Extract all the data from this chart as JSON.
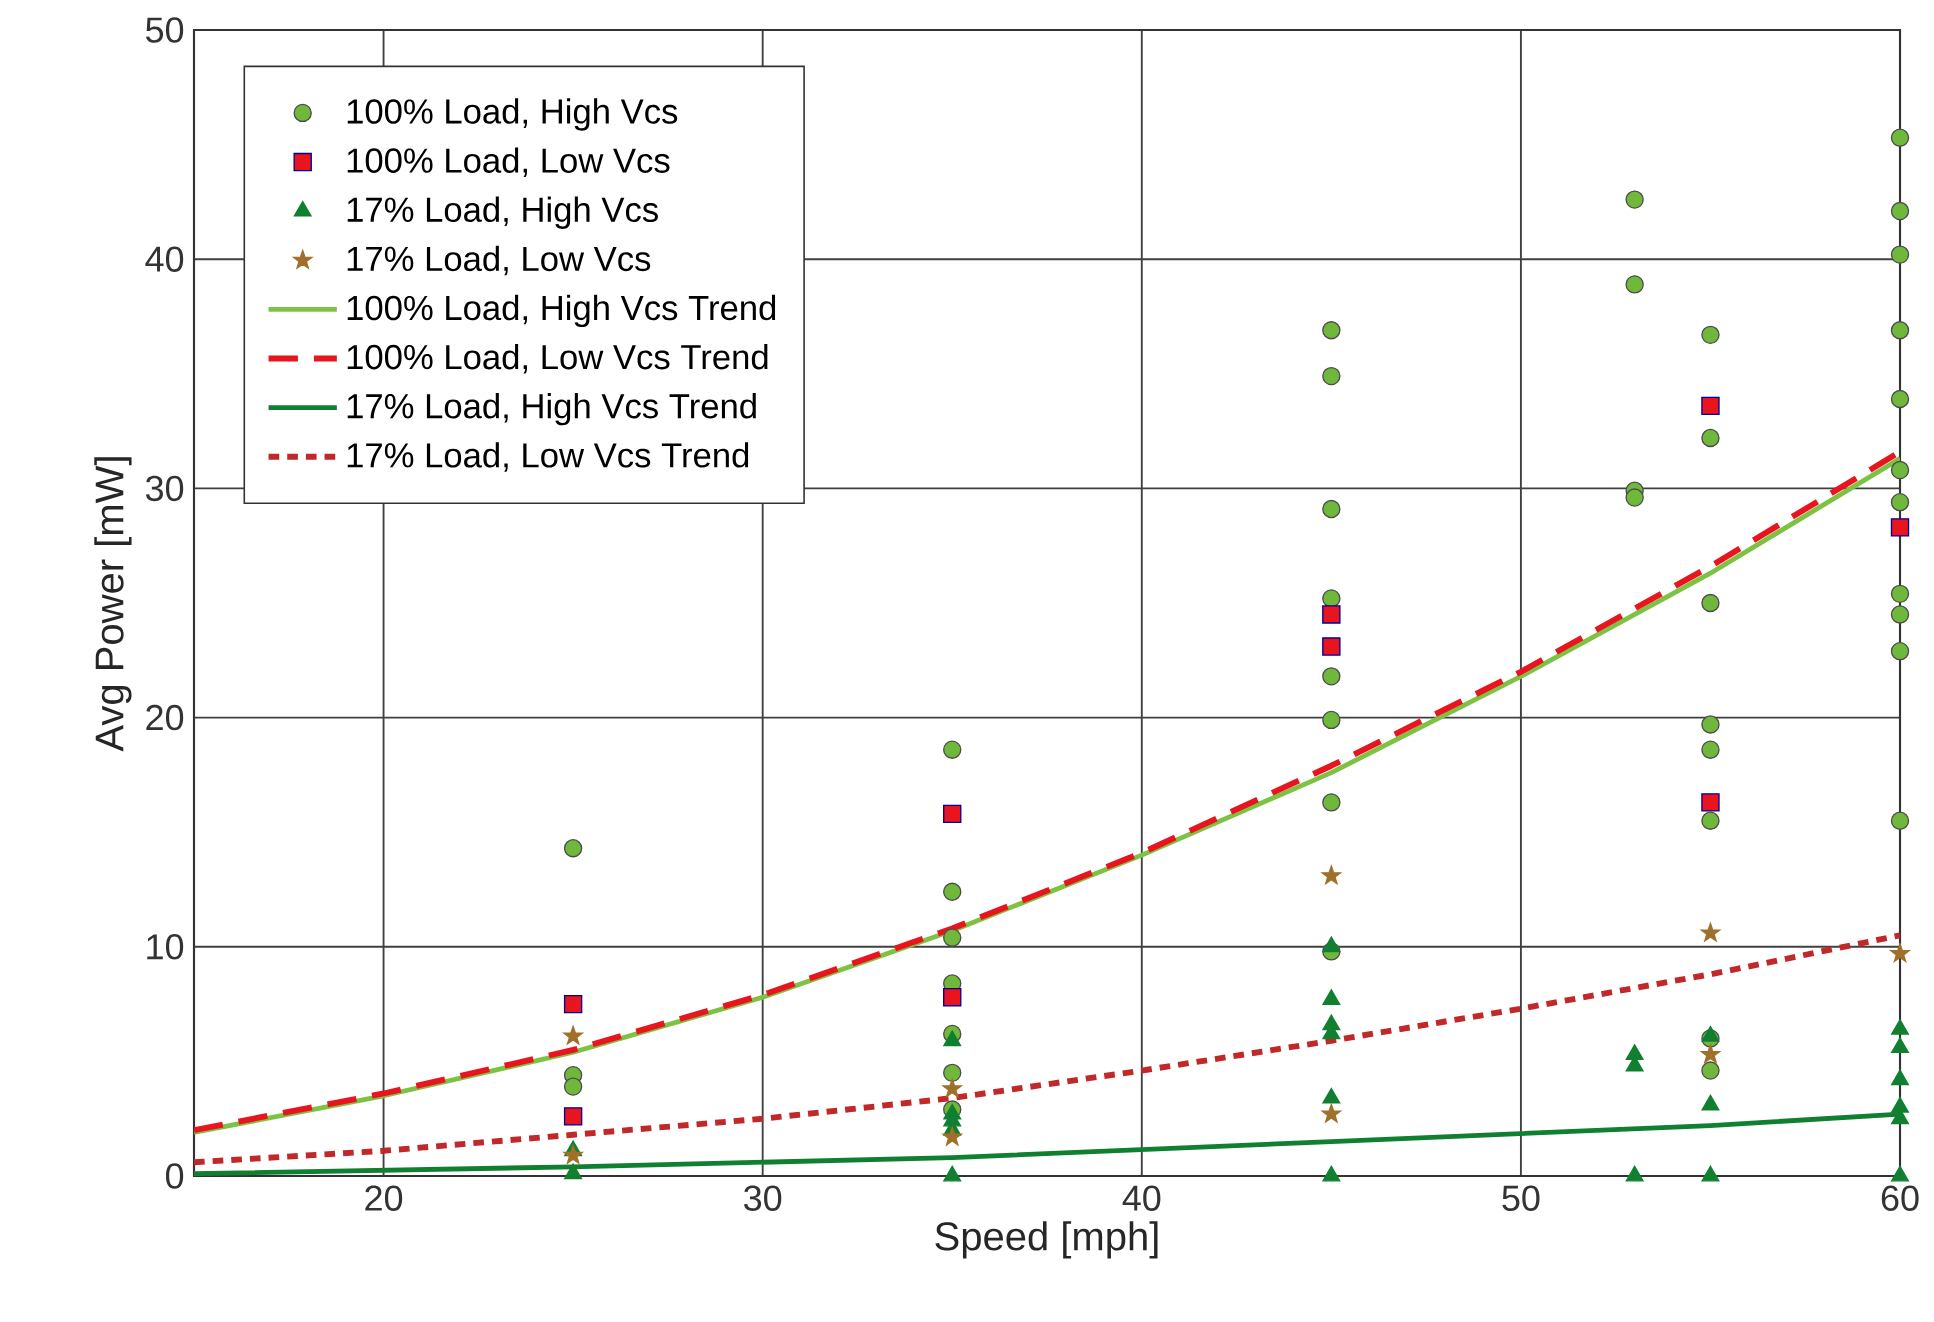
{
  "chart_data": {
    "type": "scatter",
    "xlabel": "Speed [mph]",
    "ylabel": "Avg Power [mW]",
    "xlim": [
      15,
      60
    ],
    "ylim": [
      0,
      50
    ],
    "xticks": [
      20,
      30,
      40,
      50,
      60
    ],
    "yticks": [
      0,
      10,
      20,
      30,
      40,
      50
    ],
    "grid": true,
    "legend": "top left",
    "series": [
      {
        "name": "100% Load, High Vcs",
        "marker": "circle",
        "color": "#70b83c",
        "x": [
          25,
          25,
          25,
          35,
          35,
          35,
          35,
          35,
          35,
          35,
          45,
          45,
          45,
          45,
          45,
          45,
          45,
          45,
          53,
          53,
          53,
          53,
          55,
          55,
          55,
          55,
          55,
          55,
          55,
          55,
          60,
          60,
          60,
          60,
          60,
          60,
          60,
          60,
          60,
          60,
          60
        ],
        "values": [
          14.3,
          4.4,
          3.9,
          18.6,
          12.4,
          10.4,
          8.4,
          6.2,
          4.5,
          2.9,
          36.9,
          34.9,
          29.1,
          25.2,
          21.8,
          19.9,
          16.3,
          9.8,
          42.6,
          38.9,
          29.9,
          29.6,
          36.7,
          32.2,
          25.0,
          19.7,
          18.6,
          15.5,
          6.0,
          4.6,
          45.3,
          42.1,
          40.2,
          36.9,
          33.9,
          30.8,
          29.4,
          25.4,
          24.5,
          22.9,
          15.5
        ]
      },
      {
        "name": "100% Load, Low Vcs",
        "marker": "square",
        "color": "#e8141e",
        "x": [
          25,
          25,
          35,
          35,
          45,
          45,
          55,
          55,
          60
        ],
        "values": [
          7.5,
          2.6,
          15.8,
          7.8,
          24.5,
          23.1,
          33.6,
          16.3,
          28.3
        ]
      },
      {
        "name": "17% Load, High Vcs",
        "marker": "triangle",
        "color": "#108030",
        "x": [
          25,
          25,
          35,
          35,
          35,
          35,
          35,
          45,
          45,
          45,
          45,
          45,
          45,
          53,
          53,
          53,
          55,
          55,
          55,
          60,
          60,
          60,
          60,
          60,
          60
        ],
        "values": [
          1.1,
          0.1,
          5.9,
          2.7,
          2.4,
          2.0,
          0,
          10.0,
          7.7,
          6.6,
          6.2,
          3.4,
          0,
          5.3,
          4.8,
          0,
          6.1,
          3.1,
          0,
          6.4,
          5.6,
          4.2,
          3.0,
          2.5,
          0
        ]
      },
      {
        "name": "17% Load, Low Vcs",
        "marker": "star",
        "color": "#a0702a",
        "x": [
          25,
          25,
          35,
          35,
          45,
          45,
          55,
          55,
          60
        ],
        "values": [
          6.1,
          0.9,
          3.8,
          1.7,
          13.1,
          2.7,
          10.6,
          5.3,
          9.7
        ]
      },
      {
        "name": "100% Load, High Vcs Trend",
        "type": "line",
        "line_style": "solid",
        "color": "#7dc242",
        "x": [
          15,
          20,
          25,
          30,
          35,
          40,
          45,
          50,
          55,
          60
        ],
        "values": [
          1.9,
          3.5,
          5.4,
          7.8,
          10.7,
          14.0,
          17.6,
          21.8,
          26.3,
          31.3
        ]
      },
      {
        "name": "100% Load, Low Vcs Trend",
        "type": "line",
        "line_style": "dashed",
        "color": "#e8141e",
        "x": [
          15,
          20,
          25,
          30,
          35,
          40,
          45,
          50,
          55,
          60
        ],
        "values": [
          2.0,
          3.6,
          5.5,
          7.9,
          10.8,
          14.1,
          17.9,
          22.0,
          26.6,
          31.6
        ]
      },
      {
        "name": "17% Load, High Vcs Trend",
        "type": "line",
        "line_style": "solid",
        "color": "#108030",
        "x": [
          15,
          25,
          35,
          45,
          55,
          60
        ],
        "values": [
          0.1,
          0.4,
          0.8,
          1.5,
          2.2,
          2.7
        ]
      },
      {
        "name": "17% Load, Low Vcs Trend",
        "type": "line",
        "line_style": "dotted",
        "color": "#c0282a",
        "x": [
          15,
          20,
          25,
          30,
          35,
          40,
          45,
          50,
          55,
          60
        ],
        "values": [
          0.6,
          1.1,
          1.8,
          2.5,
          3.4,
          4.6,
          5.9,
          7.3,
          8.8,
          10.5
        ]
      }
    ]
  }
}
